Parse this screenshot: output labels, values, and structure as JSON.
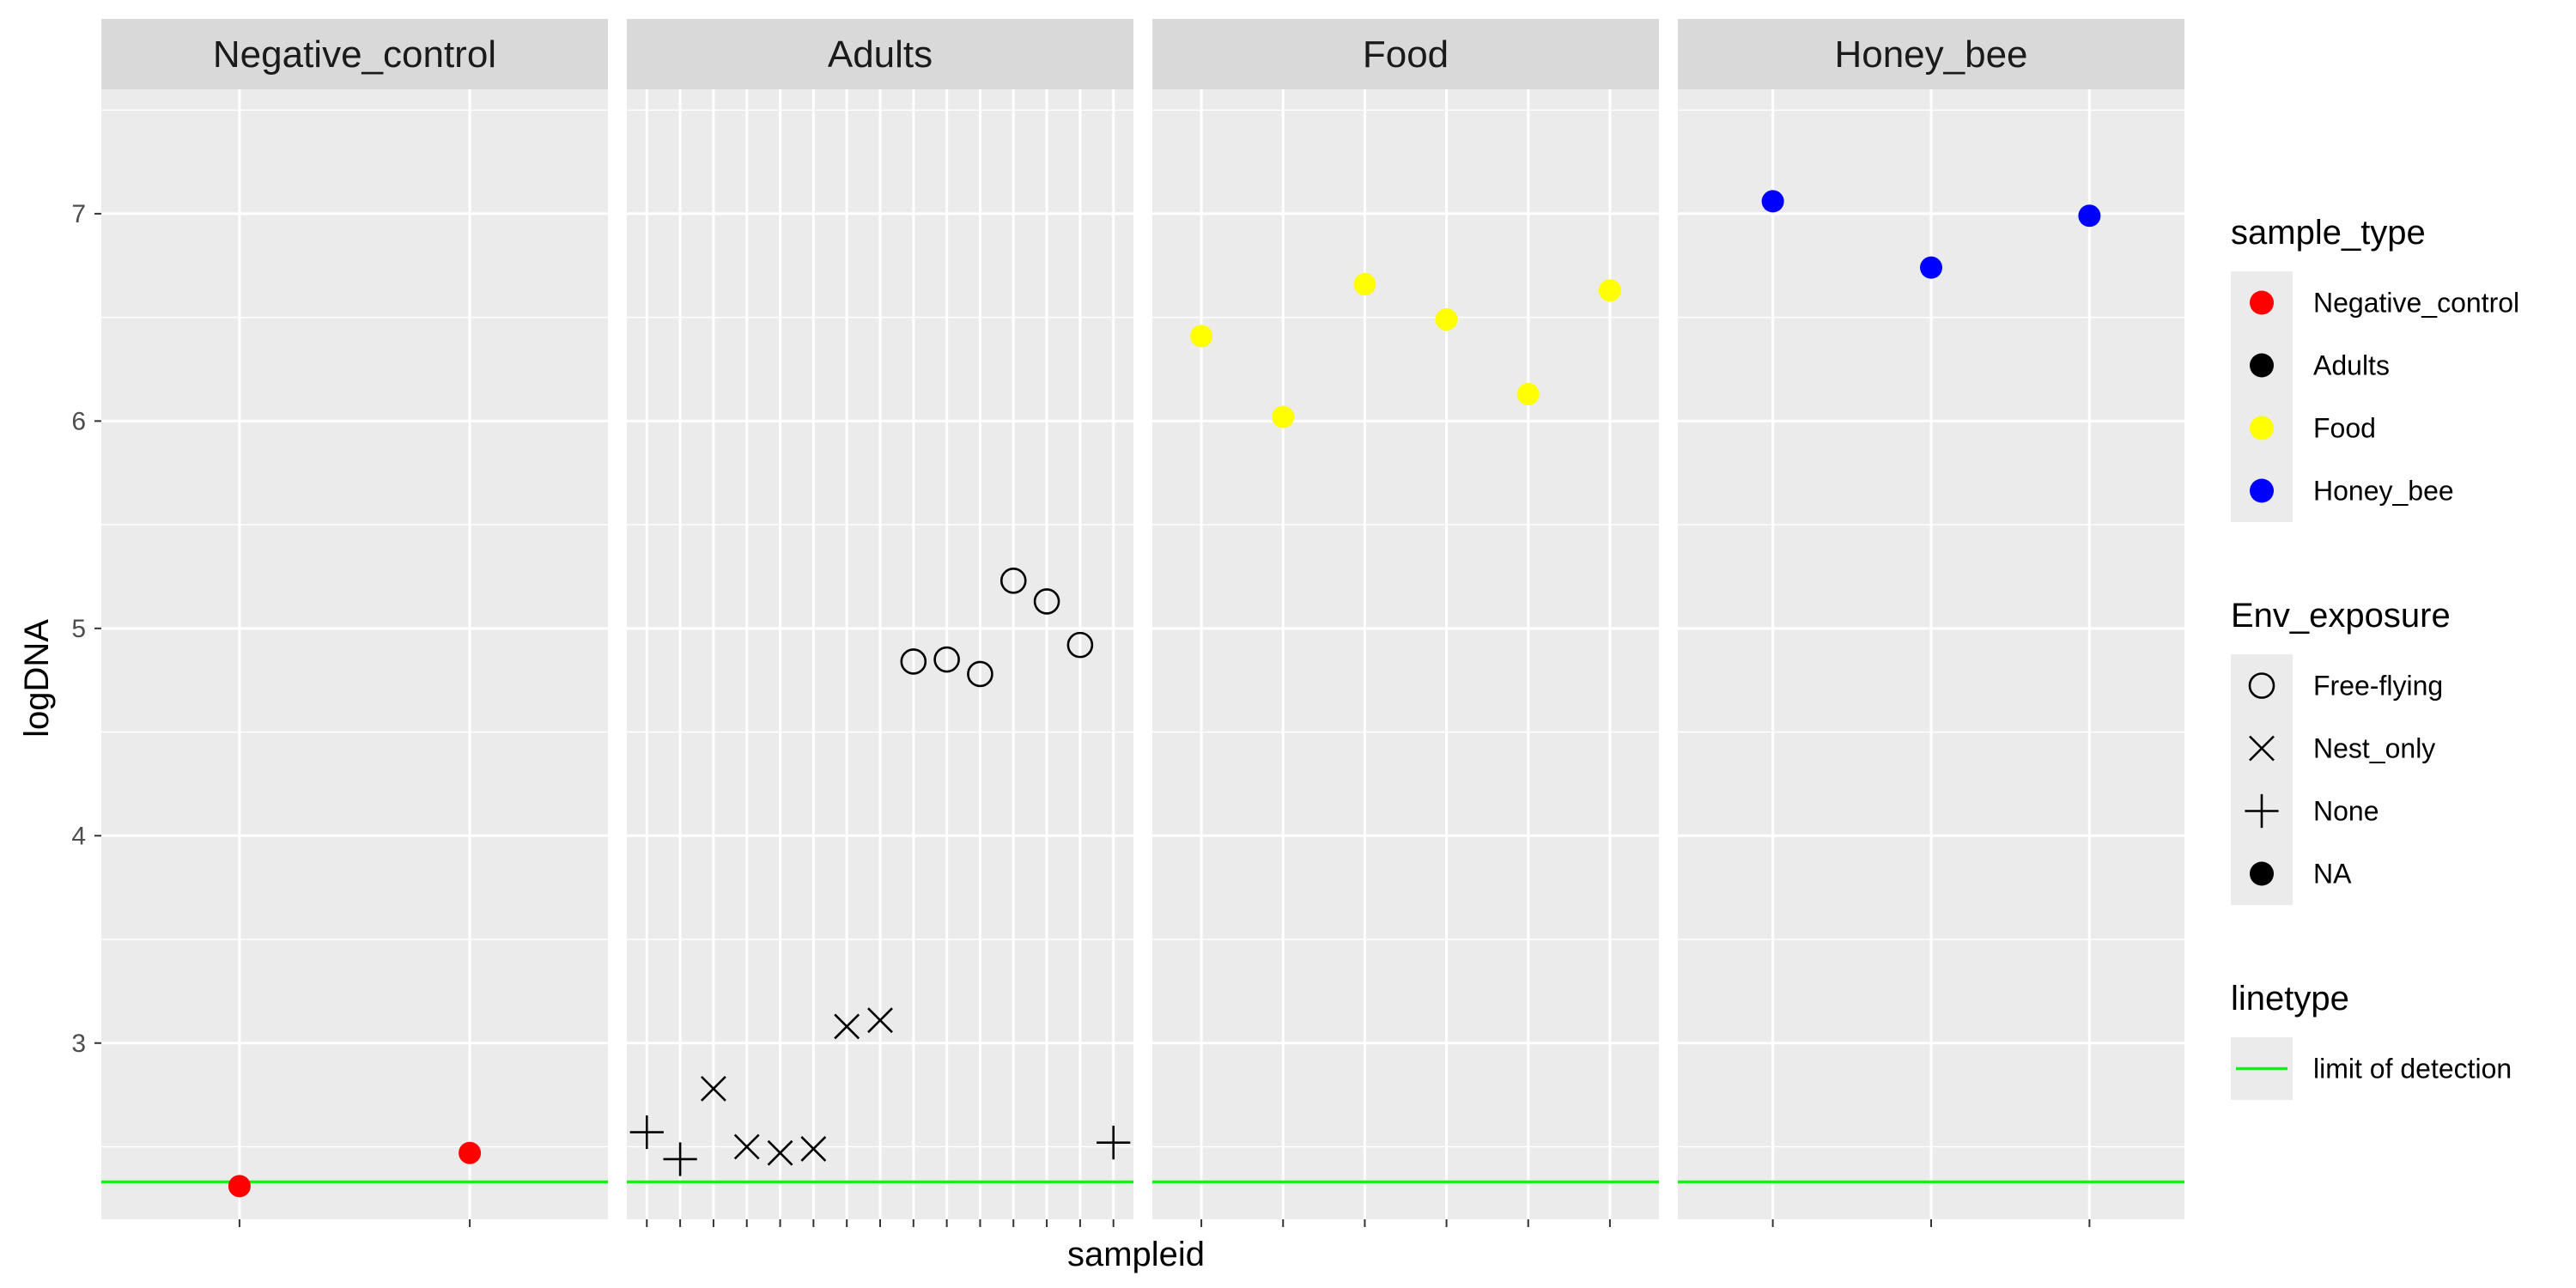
{
  "chart_data": {
    "type": "scatter",
    "title": "",
    "xlabel": "sampleid",
    "ylabel": "logDNA",
    "ylim": [
      2.15,
      7.6
    ],
    "yticks": [
      3,
      4,
      5,
      6,
      7
    ],
    "grid": true,
    "limit_of_detection": 2.33,
    "legend_position": "right",
    "facets": [
      {
        "name": "Negative_control",
        "n_samples": 2,
        "points": [
          {
            "i": 0,
            "y": 2.31,
            "shape": "dot",
            "sample_type": "Negative_control"
          },
          {
            "i": 1,
            "y": 2.47,
            "shape": "dot",
            "sample_type": "Negative_control"
          }
        ]
      },
      {
        "name": "Adults",
        "n_samples": 15,
        "points": [
          {
            "i": 0,
            "y": 2.57,
            "shape": "plus",
            "env": "None"
          },
          {
            "i": 1,
            "y": 2.44,
            "shape": "plus",
            "env": "None"
          },
          {
            "i": 2,
            "y": 2.78,
            "shape": "cross",
            "env": "Nest_only"
          },
          {
            "i": 3,
            "y": 2.5,
            "shape": "cross",
            "env": "Nest_only"
          },
          {
            "i": 4,
            "y": 2.47,
            "shape": "cross",
            "env": "Nest_only"
          },
          {
            "i": 5,
            "y": 2.49,
            "shape": "cross",
            "env": "Nest_only"
          },
          {
            "i": 6,
            "y": 3.08,
            "shape": "cross",
            "env": "Nest_only"
          },
          {
            "i": 7,
            "y": 3.11,
            "shape": "cross",
            "env": "Nest_only"
          },
          {
            "i": 8,
            "y": 4.84,
            "shape": "circle",
            "env": "Free-flying"
          },
          {
            "i": 9,
            "y": 4.85,
            "shape": "circle",
            "env": "Free-flying"
          },
          {
            "i": 10,
            "y": 4.78,
            "shape": "circle",
            "env": "Free-flying"
          },
          {
            "i": 11,
            "y": 5.23,
            "shape": "circle",
            "env": "Free-flying"
          },
          {
            "i": 12,
            "y": 5.13,
            "shape": "circle",
            "env": "Free-flying"
          },
          {
            "i": 13,
            "y": 4.92,
            "shape": "circle",
            "env": "Free-flying"
          },
          {
            "i": 14,
            "y": 2.52,
            "shape": "plus",
            "env": "None"
          }
        ]
      },
      {
        "name": "Food",
        "n_samples": 6,
        "points": [
          {
            "i": 0,
            "y": 6.41,
            "shape": "dot",
            "sample_type": "Food"
          },
          {
            "i": 1,
            "y": 6.02,
            "shape": "dot",
            "sample_type": "Food"
          },
          {
            "i": 2,
            "y": 6.66,
            "shape": "dot",
            "sample_type": "Food"
          },
          {
            "i": 3,
            "y": 6.49,
            "shape": "dot",
            "sample_type": "Food"
          },
          {
            "i": 4,
            "y": 6.13,
            "shape": "dot",
            "sample_type": "Food"
          },
          {
            "i": 5,
            "y": 6.63,
            "shape": "dot",
            "sample_type": "Food"
          }
        ]
      },
      {
        "name": "Honey_bee",
        "n_samples": 3,
        "points": [
          {
            "i": 0,
            "y": 7.06,
            "shape": "dot",
            "sample_type": "Honey_bee"
          },
          {
            "i": 1,
            "y": 6.74,
            "shape": "dot",
            "sample_type": "Honey_bee"
          },
          {
            "i": 2,
            "y": 6.99,
            "shape": "dot",
            "sample_type": "Honey_bee"
          }
        ]
      }
    ],
    "colors": {
      "Negative_control": "#ff0000",
      "Adults": "#000000",
      "Food": "#ffff00",
      "Honey_bee": "#0000ff",
      "lod_line": "#00ff00",
      "panel_bg": "#ebebeb",
      "strip_bg": "#d9d9d9",
      "grid": "#ffffff"
    },
    "legends": [
      {
        "title": "sample_type",
        "items": [
          {
            "label": "Negative_control",
            "symbol": "dot",
            "color": "#ff0000"
          },
          {
            "label": "Adults",
            "symbol": "dot",
            "color": "#000000"
          },
          {
            "label": "Food",
            "symbol": "dot",
            "color": "#ffff00"
          },
          {
            "label": "Honey_bee",
            "symbol": "dot",
            "color": "#0000ff"
          }
        ]
      },
      {
        "title": "Env_exposure",
        "items": [
          {
            "label": "Free-flying",
            "symbol": "circle",
            "color": "#000000"
          },
          {
            "label": "Nest_only",
            "symbol": "cross",
            "color": "#000000"
          },
          {
            "label": "None",
            "symbol": "plus",
            "color": "#000000"
          },
          {
            "label": "NA",
            "symbol": "dot",
            "color": "#000000"
          }
        ]
      },
      {
        "title": "linetype",
        "items": [
          {
            "label": "limit of detection",
            "symbol": "line",
            "color": "#00ff00"
          }
        ]
      }
    ]
  }
}
